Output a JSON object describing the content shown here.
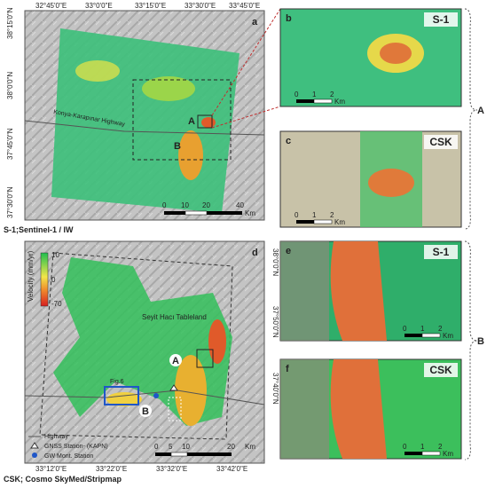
{
  "panel_a": {
    "letter": "a",
    "top_ticks": [
      "32°45'0\"E",
      "33°0'0\"E",
      "33°15'0\"E",
      "33°30'0\"E",
      "33°45'0\"E"
    ],
    "left_ticks": [
      "38°15'0\"N",
      "38°0'0\"N",
      "37°45'0\"N",
      "37°30'0\"N"
    ],
    "highway": "Konya-Karapınar Highway",
    "site_a": "A",
    "site_b": "B",
    "scale": [
      "0",
      "10",
      "20",
      "40"
    ],
    "scale_unit": "Km",
    "caption": "S-1;Sentinel-1 / IW"
  },
  "panel_d": {
    "letter": "d",
    "bottom_ticks": [
      "33°12'0\"E",
      "33°22'0\"E",
      "33°32'0\"E",
      "33°42'0\"E"
    ],
    "right_ticks": [
      "38°0'0\"N",
      "37°50'0\"N",
      "37°40'0\"N"
    ],
    "legend_title": "Velocity (mm/yr)",
    "legend_values": [
      "10",
      "0",
      "-70"
    ],
    "tableland": "Seyit Hacı Tableland",
    "fig_ref": "Fig.6",
    "site_a": "A",
    "site_b": "B",
    "scale": [
      "0",
      "5",
      "10",
      "20"
    ],
    "scale_unit": "Km",
    "legend_items": [
      "Highway",
      "GNSS Station- (KAPN)",
      "GW Mont. Station"
    ],
    "caption": "CSK; Cosmo SkyMed/Stripmap"
  },
  "insets": [
    {
      "letter": "b",
      "sensor": "S-1",
      "scale": [
        "0",
        "1",
        "2"
      ],
      "unit": "Km"
    },
    {
      "letter": "c",
      "sensor": "CSK",
      "scale": [
        "0",
        "1",
        "2"
      ],
      "unit": "Km"
    },
    {
      "letter": "e",
      "sensor": "S-1",
      "scale": [
        "0",
        "1",
        "2"
      ],
      "unit": "Km"
    },
    {
      "letter": "f",
      "sensor": "CSK",
      "scale": [
        "0",
        "1",
        "2"
      ],
      "unit": "Km"
    }
  ],
  "groups": [
    "A",
    "B"
  ]
}
